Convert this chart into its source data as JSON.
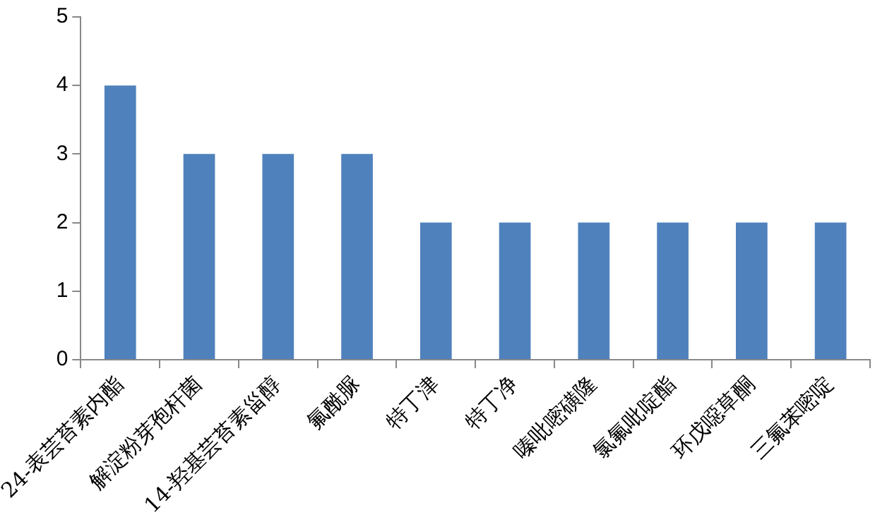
{
  "chart_data": {
    "type": "bar",
    "categories": [
      "24-表芸苔素内酯",
      "解淀粉芽孢杆菌",
      "14-羟基芸苔素甾醇",
      "氟酰脲",
      "特丁津",
      "特丁净",
      "嗪吡嘧磺隆",
      "氯氟吡啶酯",
      "环戊噁草酮",
      "三氟苯嘧啶"
    ],
    "values": [
      4,
      3,
      3,
      3,
      2,
      2,
      2,
      2,
      2,
      2
    ],
    "color": "#4f81bd",
    "ylim": [
      0,
      5
    ],
    "yticks": [
      0,
      1,
      2,
      3,
      4,
      5
    ],
    "grid": false,
    "legend": false
  }
}
